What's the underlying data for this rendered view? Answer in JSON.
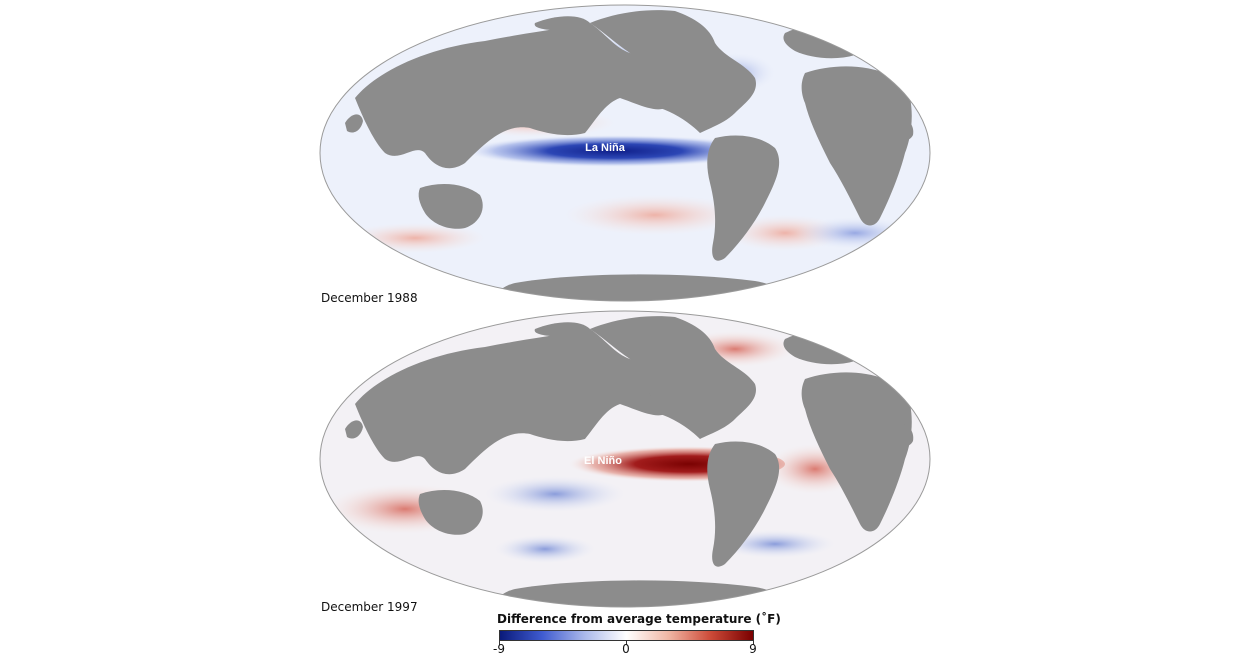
{
  "maps": [
    {
      "id": "top",
      "date_label": "December 1988",
      "annotation": "La Niña",
      "phase": "cold"
    },
    {
      "id": "bottom",
      "date_label": "December 1997",
      "annotation": "El Niño",
      "phase": "warm"
    }
  ],
  "legend": {
    "title": "Difference from average temperature (˚F)",
    "min_label": "-9",
    "mid_label": "0",
    "max_label": "9",
    "range": [
      -9,
      9
    ],
    "colors": [
      "#0a1a7a",
      "#3f5bd0",
      "#aab8ea",
      "#ffffff",
      "#f0b6a4",
      "#cc4a38",
      "#7a0000"
    ]
  },
  "colors": {
    "land": "#8c8c8c",
    "ocean_neutral": "#eef2fb",
    "cold_anomaly": "#1d2f9c",
    "warm_anomaly": "#8b0c0c"
  }
}
